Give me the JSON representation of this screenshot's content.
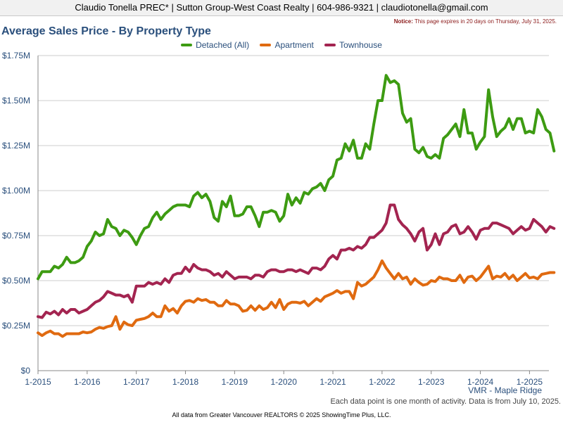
{
  "header": {
    "text": "Claudio Tonella PREC* | Sutton Group-West Coast Realty | 604-986-9321 | claudiotonella@gmail.com"
  },
  "notice": {
    "label": "Notice:",
    "text": "This page expires in 20 days on Thursday, July 31, 2025."
  },
  "region": "VMR - Maple Ridge",
  "footnote": "Each data point is one month of activity. Data is from July 10, 2025.",
  "credit": "All data from Greater Vancouver REALTORS © 2025 ShowingTime Plus, LLC.",
  "colors": {
    "detached": "#3d9b12",
    "apartment": "#e06a10",
    "townhouse": "#a32450",
    "title": "#2a4f7c",
    "grid": "#cccccc"
  },
  "chart_data": {
    "type": "line",
    "title": "Average Sales Price - By Property Type",
    "x_labels": [
      "1-2015",
      "1-2016",
      "1-2017",
      "1-2018",
      "1-2019",
      "1-2020",
      "1-2021",
      "1-2022",
      "1-2023",
      "1-2024",
      "1-2025"
    ],
    "x_start": "1-2015",
    "x_step": "1 month",
    "y_ticks": [
      0,
      250000,
      500000,
      750000,
      1000000,
      1250000,
      1500000,
      1750000
    ],
    "y_tick_labels": [
      "$0",
      "$0.25M",
      "$0.50M",
      "$0.75M",
      "$1.00M",
      "$1.25M",
      "$1.50M",
      "$1.75M"
    ],
    "ylim": [
      0,
      1750000
    ],
    "grid": true,
    "legend_position": "top-center",
    "series": [
      {
        "name": "Detached (All)",
        "color": "#3d9b12",
        "values": [
          510000,
          550000,
          550000,
          550000,
          580000,
          570000,
          590000,
          630000,
          600000,
          600000,
          610000,
          630000,
          690000,
          720000,
          770000,
          750000,
          760000,
          840000,
          800000,
          790000,
          750000,
          780000,
          770000,
          740000,
          700000,
          750000,
          790000,
          800000,
          850000,
          880000,
          840000,
          870000,
          890000,
          910000,
          920000,
          920000,
          920000,
          910000,
          970000,
          990000,
          960000,
          980000,
          940000,
          850000,
          830000,
          940000,
          910000,
          970000,
          860000,
          860000,
          870000,
          910000,
          910000,
          860000,
          800000,
          880000,
          880000,
          890000,
          880000,
          830000,
          860000,
          980000,
          920000,
          960000,
          930000,
          990000,
          980000,
          1010000,
          1020000,
          1040000,
          1000000,
          1060000,
          1080000,
          1170000,
          1180000,
          1260000,
          1220000,
          1280000,
          1180000,
          1180000,
          1260000,
          1230000,
          1370000,
          1500000,
          1500000,
          1640000,
          1600000,
          1610000,
          1590000,
          1430000,
          1380000,
          1400000,
          1230000,
          1210000,
          1240000,
          1190000,
          1180000,
          1200000,
          1180000,
          1290000,
          1310000,
          1340000,
          1370000,
          1300000,
          1450000,
          1320000,
          1320000,
          1230000,
          1270000,
          1300000,
          1560000,
          1410000,
          1300000,
          1330000,
          1350000,
          1400000,
          1340000,
          1400000,
          1400000,
          1320000,
          1330000,
          1320000,
          1450000,
          1410000,
          1340000,
          1320000,
          1220000
        ]
      },
      {
        "name": "Apartment",
        "color": "#e06a10",
        "values": [
          210000,
          195000,
          210000,
          220000,
          205000,
          205000,
          190000,
          205000,
          205000,
          205000,
          205000,
          215000,
          210000,
          215000,
          230000,
          240000,
          235000,
          245000,
          250000,
          300000,
          230000,
          270000,
          255000,
          250000,
          280000,
          285000,
          290000,
          300000,
          320000,
          300000,
          300000,
          360000,
          330000,
          345000,
          320000,
          360000,
          385000,
          390000,
          380000,
          400000,
          390000,
          395000,
          380000,
          380000,
          360000,
          360000,
          390000,
          370000,
          370000,
          360000,
          330000,
          335000,
          360000,
          335000,
          360000,
          340000,
          350000,
          380000,
          350000,
          395000,
          340000,
          370000,
          380000,
          380000,
          375000,
          385000,
          360000,
          380000,
          400000,
          385000,
          410000,
          420000,
          430000,
          445000,
          430000,
          440000,
          440000,
          400000,
          490000,
          470000,
          480000,
          500000,
          520000,
          560000,
          610000,
          570000,
          540000,
          510000,
          540000,
          510000,
          520000,
          480000,
          510000,
          490000,
          475000,
          480000,
          500000,
          495000,
          520000,
          510000,
          510000,
          500000,
          500000,
          530000,
          490000,
          520000,
          525000,
          500000,
          520000,
          550000,
          580000,
          510000,
          525000,
          520000,
          540000,
          510000,
          530000,
          500000,
          520000,
          540000,
          515000,
          520000,
          510000,
          535000,
          540000,
          545000,
          545000
        ]
      },
      {
        "name": "Townhouse",
        "color": "#a32450",
        "values": [
          300000,
          295000,
          325000,
          315000,
          330000,
          310000,
          340000,
          320000,
          340000,
          340000,
          320000,
          330000,
          340000,
          360000,
          380000,
          390000,
          410000,
          440000,
          430000,
          420000,
          420000,
          410000,
          420000,
          380000,
          470000,
          470000,
          470000,
          490000,
          480000,
          490000,
          480000,
          510000,
          490000,
          530000,
          540000,
          540000,
          575000,
          550000,
          590000,
          570000,
          560000,
          560000,
          550000,
          530000,
          540000,
          520000,
          550000,
          530000,
          510000,
          520000,
          520000,
          520000,
          510000,
          530000,
          530000,
          520000,
          550000,
          560000,
          560000,
          550000,
          550000,
          560000,
          560000,
          550000,
          560000,
          550000,
          540000,
          570000,
          570000,
          560000,
          580000,
          620000,
          640000,
          620000,
          670000,
          670000,
          680000,
          670000,
          690000,
          680000,
          700000,
          740000,
          740000,
          760000,
          780000,
          820000,
          920000,
          920000,
          840000,
          810000,
          790000,
          760000,
          720000,
          770000,
          790000,
          670000,
          700000,
          760000,
          700000,
          760000,
          770000,
          800000,
          810000,
          760000,
          770000,
          800000,
          770000,
          730000,
          780000,
          790000,
          790000,
          820000,
          820000,
          810000,
          800000,
          790000,
          760000,
          780000,
          800000,
          780000,
          790000,
          840000,
          820000,
          800000,
          770000,
          800000,
          790000
        ]
      }
    ]
  }
}
